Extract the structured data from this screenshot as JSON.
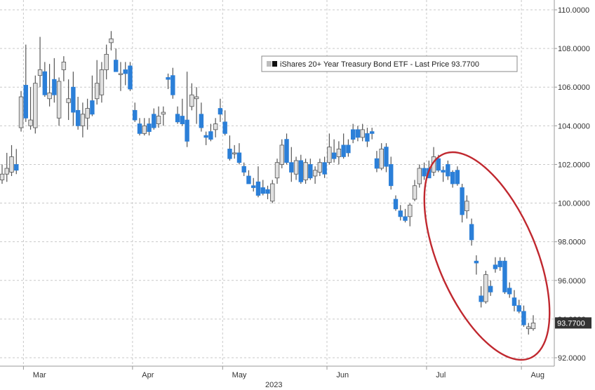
{
  "chart_data": {
    "type": "candlestick",
    "title": "",
    "legend": {
      "text": "iShares 20+ Year Treasury Bond ETF - Last Price 93.7700",
      "placement": "top-right"
    },
    "last_price_label": "93.7700",
    "y_axis": {
      "side": "right",
      "range": [
        92.0,
        110.0
      ],
      "ticks": [
        "110.0000",
        "108.0000",
        "106.0000",
        "104.0000",
        "102.0000",
        "100.0000",
        "98.0000",
        "96.0000",
        "94.0000",
        "92.0000"
      ],
      "tick_values": [
        110,
        108,
        106,
        104,
        102,
        100,
        98,
        96,
        94,
        92
      ]
    },
    "x_axis": {
      "month_labels": [
        "Mar",
        "Apr",
        "May",
        "Jun",
        "Jul",
        "Aug"
      ],
      "year_label": "2023"
    },
    "grid": true,
    "colors": {
      "up": "#e0e0e0",
      "up_outline": "#555555",
      "down": "#2b7fd8",
      "wick": "#555555",
      "annotation": "#c0282f",
      "label_bg": "#333333"
    },
    "annotation": {
      "shape": "ellipse",
      "description_color": "red"
    },
    "candles": [
      {
        "d": "Feb-22",
        "o": 101.2,
        "h": 102.0,
        "l": 101.0,
        "c": 101.5
      },
      {
        "d": "Feb-23",
        "o": 101.5,
        "h": 102.6,
        "l": 101.1,
        "c": 101.8
      },
      {
        "d": "Feb-24",
        "o": 101.6,
        "h": 103.0,
        "l": 101.4,
        "c": 102.4
      },
      {
        "d": "Feb-27",
        "o": 102.0,
        "h": 102.8,
        "l": 101.5,
        "c": 101.7
      },
      {
        "d": "Feb-28",
        "o": 103.9,
        "h": 105.8,
        "l": 103.7,
        "c": 105.5
      },
      {
        "d": "Mar-01",
        "o": 106.1,
        "h": 108.2,
        "l": 104.2,
        "c": 104.4
      },
      {
        "d": "Mar-02",
        "o": 104.0,
        "h": 106.0,
        "l": 103.8,
        "c": 104.3
      },
      {
        "d": "Mar-03",
        "o": 103.9,
        "h": 106.6,
        "l": 103.6,
        "c": 106.2
      },
      {
        "d": "Mar-06",
        "o": 106.6,
        "h": 108.6,
        "l": 106.0,
        "c": 106.9
      },
      {
        "d": "Mar-07",
        "o": 106.8,
        "h": 107.3,
        "l": 105.5,
        "c": 105.6
      },
      {
        "d": "Mar-08",
        "o": 105.4,
        "h": 107.2,
        "l": 105.0,
        "c": 105.7
      },
      {
        "d": "Mar-09",
        "o": 106.4,
        "h": 107.5,
        "l": 105.2,
        "c": 105.6
      },
      {
        "d": "Mar-10",
        "o": 104.4,
        "h": 106.5,
        "l": 104.0,
        "c": 106.3
      },
      {
        "d": "Mar-13",
        "o": 106.9,
        "h": 107.6,
        "l": 106.3,
        "c": 107.3
      },
      {
        "d": "Mar-14",
        "o": 105.2,
        "h": 106.4,
        "l": 104.3,
        "c": 105.4
      },
      {
        "d": "Mar-15",
        "o": 106.0,
        "h": 106.8,
        "l": 104.0,
        "c": 104.7
      },
      {
        "d": "Mar-16",
        "o": 104.8,
        "h": 105.5,
        "l": 103.8,
        "c": 104.0
      },
      {
        "d": "Mar-17",
        "o": 104.0,
        "h": 105.2,
        "l": 103.4,
        "c": 104.6
      },
      {
        "d": "Mar-20",
        "o": 104.4,
        "h": 105.4,
        "l": 103.8,
        "c": 104.9
      },
      {
        "d": "Mar-21",
        "o": 105.3,
        "h": 106.6,
        "l": 104.5,
        "c": 104.6
      },
      {
        "d": "Mar-22",
        "o": 105.4,
        "h": 107.4,
        "l": 105.1,
        "c": 106.2
      },
      {
        "d": "Mar-23",
        "o": 105.6,
        "h": 107.3,
        "l": 105.2,
        "c": 106.9
      },
      {
        "d": "Mar-24",
        "o": 106.9,
        "h": 108.2,
        "l": 106.4,
        "c": 107.7
      },
      {
        "d": "Mar-27",
        "o": 108.3,
        "h": 108.9,
        "l": 107.9,
        "c": 108.5
      },
      {
        "d": "Mar-28",
        "o": 107.4,
        "h": 108.0,
        "l": 106.8,
        "c": 106.8
      },
      {
        "d": "Mar-29",
        "o": 106.7,
        "h": 107.3,
        "l": 105.8,
        "c": 106.7
      },
      {
        "d": "Mar-30",
        "o": 106.9,
        "h": 107.3,
        "l": 106.1,
        "c": 106.7
      },
      {
        "d": "Mar-31",
        "o": 107.1,
        "h": 107.3,
        "l": 105.8,
        "c": 105.9
      },
      {
        "d": "Apr-03",
        "o": 104.8,
        "h": 105.2,
        "l": 104.2,
        "c": 104.3
      },
      {
        "d": "Apr-04",
        "o": 104.1,
        "h": 104.4,
        "l": 103.5,
        "c": 103.6
      },
      {
        "d": "Apr-05",
        "o": 103.6,
        "h": 104.4,
        "l": 103.5,
        "c": 104.0
      },
      {
        "d": "Apr-06",
        "o": 104.1,
        "h": 104.4,
        "l": 103.5,
        "c": 103.7
      },
      {
        "d": "Apr-10",
        "o": 104.6,
        "h": 104.9,
        "l": 103.8,
        "c": 103.9
      },
      {
        "d": "Apr-11",
        "o": 104.1,
        "h": 105.0,
        "l": 103.9,
        "c": 104.5
      },
      {
        "d": "Apr-12",
        "o": 104.6,
        "h": 105.0,
        "l": 104.0,
        "c": 104.7
      },
      {
        "d": "Apr-13",
        "o": 106.5,
        "h": 106.7,
        "l": 105.9,
        "c": 106.4
      },
      {
        "d": "Apr-14",
        "o": 106.6,
        "h": 107.0,
        "l": 105.4,
        "c": 105.6
      },
      {
        "d": "Apr-17",
        "o": 104.6,
        "h": 105.0,
        "l": 104.1,
        "c": 104.2
      },
      {
        "d": "Apr-18",
        "o": 104.5,
        "h": 105.4,
        "l": 104.0,
        "c": 104.1
      },
      {
        "d": "Apr-19",
        "o": 104.3,
        "h": 106.8,
        "l": 102.9,
        "c": 103.2
      },
      {
        "d": "Apr-20",
        "o": 105.0,
        "h": 106.2,
        "l": 104.8,
        "c": 105.6
      },
      {
        "d": "Apr-21",
        "o": 105.4,
        "h": 106.0,
        "l": 104.1,
        "c": 105.5
      },
      {
        "d": "Apr-24",
        "o": 104.6,
        "h": 105.2,
        "l": 103.7,
        "c": 103.9
      },
      {
        "d": "Apr-25",
        "o": 103.5,
        "h": 103.7,
        "l": 103.0,
        "c": 103.4
      },
      {
        "d": "Apr-26",
        "o": 103.7,
        "h": 104.1,
        "l": 103.2,
        "c": 103.3
      },
      {
        "d": "Apr-27",
        "o": 103.8,
        "h": 104.4,
        "l": 103.4,
        "c": 104.1
      },
      {
        "d": "Apr-28",
        "o": 104.9,
        "h": 105.4,
        "l": 104.2,
        "c": 104.6
      },
      {
        "d": "May-01",
        "o": 104.2,
        "h": 104.8,
        "l": 103.5,
        "c": 103.6
      },
      {
        "d": "May-02",
        "o": 102.8,
        "h": 103.5,
        "l": 102.2,
        "c": 102.3
      },
      {
        "d": "May-03",
        "o": 102.6,
        "h": 103.0,
        "l": 102.3,
        "c": 102.6
      },
      {
        "d": "May-04",
        "o": 102.6,
        "h": 103.1,
        "l": 102.0,
        "c": 102.1
      },
      {
        "d": "May-05",
        "o": 101.9,
        "h": 102.1,
        "l": 101.4,
        "c": 101.6
      },
      {
        "d": "May-08",
        "o": 101.4,
        "h": 101.7,
        "l": 101.0,
        "c": 101.0
      },
      {
        "d": "May-09",
        "o": 100.9,
        "h": 101.3,
        "l": 100.6,
        "c": 100.8
      },
      {
        "d": "May-10",
        "o": 101.1,
        "h": 101.9,
        "l": 100.3,
        "c": 100.4
      },
      {
        "d": "May-11",
        "o": 100.8,
        "h": 101.2,
        "l": 100.4,
        "c": 100.5
      },
      {
        "d": "May-12",
        "o": 100.7,
        "h": 100.9,
        "l": 100.2,
        "c": 100.5
      },
      {
        "d": "May-15",
        "o": 100.1,
        "h": 101.2,
        "l": 100.0,
        "c": 101.0
      },
      {
        "d": "May-16",
        "o": 101.3,
        "h": 102.3,
        "l": 101.0,
        "c": 102.1
      },
      {
        "d": "May-17",
        "o": 102.0,
        "h": 103.3,
        "l": 101.8,
        "c": 103.0
      },
      {
        "d": "May-18",
        "o": 103.3,
        "h": 103.6,
        "l": 102.0,
        "c": 102.1
      },
      {
        "d": "May-19",
        "o": 102.1,
        "h": 102.9,
        "l": 101.1,
        "c": 101.6
      },
      {
        "d": "May-22",
        "o": 101.5,
        "h": 102.4,
        "l": 101.2,
        "c": 102.2
      },
      {
        "d": "May-23",
        "o": 102.2,
        "h": 102.5,
        "l": 101.0,
        "c": 101.1
      },
      {
        "d": "May-24",
        "o": 101.2,
        "h": 102.3,
        "l": 101.0,
        "c": 102.1
      },
      {
        "d": "May-25",
        "o": 102.0,
        "h": 102.3,
        "l": 101.2,
        "c": 101.3
      },
      {
        "d": "May-26",
        "o": 101.4,
        "h": 101.9,
        "l": 101.0,
        "c": 101.7
      },
      {
        "d": "May-30",
        "o": 101.6,
        "h": 102.3,
        "l": 101.4,
        "c": 102.1
      },
      {
        "d": "May-31",
        "o": 102.1,
        "h": 102.4,
        "l": 101.3,
        "c": 101.5
      },
      {
        "d": "Jun-01",
        "o": 102.1,
        "h": 103.6,
        "l": 102.0,
        "c": 102.9
      },
      {
        "d": "Jun-02",
        "o": 102.6,
        "h": 103.3,
        "l": 102.1,
        "c": 102.3
      },
      {
        "d": "Jun-05",
        "o": 102.4,
        "h": 103.2,
        "l": 102.0,
        "c": 102.8
      },
      {
        "d": "Jun-06",
        "o": 103.0,
        "h": 103.6,
        "l": 102.3,
        "c": 102.4
      },
      {
        "d": "Jun-07",
        "o": 103.0,
        "h": 103.3,
        "l": 102.4,
        "c": 102.6
      },
      {
        "d": "Jun-08",
        "o": 103.8,
        "h": 104.1,
        "l": 103.1,
        "c": 103.3
      },
      {
        "d": "Jun-09",
        "o": 103.8,
        "h": 104.0,
        "l": 103.2,
        "c": 103.4
      },
      {
        "d": "Jun-12",
        "o": 103.4,
        "h": 104.1,
        "l": 103.2,
        "c": 103.8
      },
      {
        "d": "Jun-13",
        "o": 103.6,
        "h": 103.9,
        "l": 102.9,
        "c": 103.2
      },
      {
        "d": "Jun-14",
        "o": 103.7,
        "h": 103.9,
        "l": 103.3,
        "c": 103.6
      },
      {
        "d": "Jun-15",
        "o": 102.3,
        "h": 102.7,
        "l": 101.6,
        "c": 101.8
      },
      {
        "d": "Jun-16",
        "o": 101.8,
        "h": 103.1,
        "l": 101.7,
        "c": 102.8
      },
      {
        "d": "Jun-20",
        "o": 102.9,
        "h": 103.1,
        "l": 101.6,
        "c": 101.9
      },
      {
        "d": "Jun-21",
        "o": 102.0,
        "h": 102.4,
        "l": 100.7,
        "c": 100.9
      },
      {
        "d": "Jun-22",
        "o": 100.2,
        "h": 100.4,
        "l": 99.6,
        "c": 99.7
      },
      {
        "d": "Jun-23",
        "o": 99.6,
        "h": 99.9,
        "l": 99.1,
        "c": 99.3
      },
      {
        "d": "Jun-26",
        "o": 99.3,
        "h": 99.7,
        "l": 99.0,
        "c": 99.1
      },
      {
        "d": "Jun-27",
        "o": 99.3,
        "h": 100.0,
        "l": 98.8,
        "c": 99.9
      },
      {
        "d": "Jun-28",
        "o": 100.2,
        "h": 101.2,
        "l": 100.1,
        "c": 100.9
      },
      {
        "d": "Jun-29",
        "o": 101.0,
        "h": 102.0,
        "l": 100.8,
        "c": 101.8
      },
      {
        "d": "Jun-30",
        "o": 101.8,
        "h": 102.1,
        "l": 101.2,
        "c": 101.4
      },
      {
        "d": "Jul-03",
        "o": 101.8,
        "h": 102.2,
        "l": 101.3,
        "c": 101.3
      },
      {
        "d": "Jul-05",
        "o": 101.6,
        "h": 102.9,
        "l": 101.4,
        "c": 102.4
      },
      {
        "d": "Jul-06",
        "o": 102.3,
        "h": 102.5,
        "l": 101.6,
        "c": 101.7
      },
      {
        "d": "Jul-07",
        "o": 101.7,
        "h": 101.9,
        "l": 101.1,
        "c": 101.6
      },
      {
        "d": "Jul-10",
        "o": 102.0,
        "h": 102.2,
        "l": 101.2,
        "c": 101.4
      },
      {
        "d": "Jul-11",
        "o": 101.6,
        "h": 101.7,
        "l": 100.8,
        "c": 101.0
      },
      {
        "d": "Jul-12",
        "o": 101.7,
        "h": 101.9,
        "l": 100.9,
        "c": 101.0
      },
      {
        "d": "Jul-13",
        "o": 100.8,
        "h": 101.0,
        "l": 99.0,
        "c": 99.4
      },
      {
        "d": "Jul-14",
        "o": 99.6,
        "h": 100.4,
        "l": 99.2,
        "c": 100.1
      },
      {
        "d": "Jul-17",
        "o": 98.9,
        "h": 99.2,
        "l": 97.8,
        "c": 98.1
      },
      {
        "d": "Jul-18",
        "o": 97.0,
        "h": 97.3,
        "l": 96.3,
        "c": 96.9
      },
      {
        "d": "Jul-19",
        "o": 95.2,
        "h": 95.7,
        "l": 94.6,
        "c": 94.9
      },
      {
        "d": "Jul-20",
        "o": 94.9,
        "h": 96.5,
        "l": 94.8,
        "c": 96.3
      },
      {
        "d": "Jul-21",
        "o": 95.7,
        "h": 96.0,
        "l": 95.2,
        "c": 95.4
      },
      {
        "d": "Jul-24",
        "o": 96.8,
        "h": 97.2,
        "l": 96.4,
        "c": 96.6
      },
      {
        "d": "Jul-25",
        "o": 97.0,
        "h": 97.2,
        "l": 96.5,
        "c": 96.7
      },
      {
        "d": "Jul-26",
        "o": 97.0,
        "h": 97.2,
        "l": 95.3,
        "c": 95.4
      },
      {
        "d": "Jul-27",
        "o": 95.6,
        "h": 95.9,
        "l": 95.1,
        "c": 95.3
      },
      {
        "d": "Jul-28",
        "o": 95.1,
        "h": 95.5,
        "l": 94.4,
        "c": 94.7
      },
      {
        "d": "Jul-31",
        "o": 94.7,
        "h": 95.0,
        "l": 94.3,
        "c": 94.4
      },
      {
        "d": "Aug-01",
        "o": 94.4,
        "h": 94.7,
        "l": 93.6,
        "c": 93.7
      },
      {
        "d": "Aug-02",
        "o": 93.5,
        "h": 93.8,
        "l": 93.2,
        "c": 93.6
      },
      {
        "d": "Aug-03",
        "o": 93.5,
        "h": 94.2,
        "l": 93.4,
        "c": 93.8
      }
    ]
  }
}
